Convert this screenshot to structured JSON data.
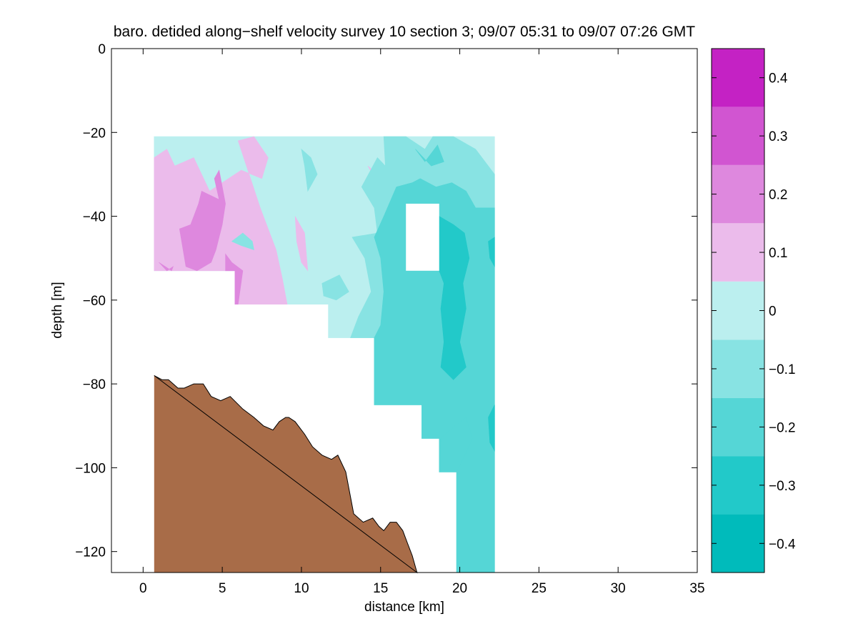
{
  "chart_data": {
    "type": "contour",
    "title": "baro. detided along−shelf velocity survey 10 section 3; 09/07 05:31 to 09/07 07:26 GMT",
    "xlabel": "distance [km]",
    "ylabel": "depth [m]",
    "xlim": [
      -2,
      35
    ],
    "ylim": [
      -125,
      0
    ],
    "x_ticks": [
      0,
      5,
      10,
      15,
      20,
      25,
      30,
      35
    ],
    "x_tick_labels": [
      "0",
      "5",
      "10",
      "15",
      "20",
      "25",
      "30",
      "35"
    ],
    "y_ticks": [
      0,
      -20,
      -40,
      -60,
      -80,
      -100,
      -120
    ],
    "y_tick_labels": [
      "0",
      "−20",
      "−40",
      "−60",
      "−80",
      "−100",
      "−120"
    ],
    "colorbar": {
      "range": [
        -0.45,
        0.45
      ],
      "levels": [
        -0.45,
        -0.35,
        -0.25,
        -0.15,
        -0.05,
        0.05,
        0.15,
        0.25,
        0.35,
        0.45
      ],
      "colors": [
        "#00bbbb",
        "#22c9c9",
        "#55d6d6",
        "#88e3e3",
        "#bbefef",
        "#ebbbeb",
        "#de88de",
        "#d155d1",
        "#c422c4",
        "#bb00bb"
      ],
      "ticks": [
        0.4,
        0.3,
        0.2,
        0.1,
        0,
        -0.1,
        -0.2,
        -0.3,
        -0.4
      ],
      "tick_labels": [
        "0.4",
        "0.3",
        "0.2",
        "0.1",
        "0",
        "−0.1",
        "−0.2",
        "−0.3",
        "−0.4"
      ]
    },
    "bathymetry": {
      "color": "#a86c48",
      "x": [
        0.7,
        1.2,
        1.6,
        2.2,
        2.6,
        3.2,
        3.8,
        4.3,
        4.9,
        5.5,
        6.3,
        7.0,
        7.6,
        8.2,
        8.6,
        9.0,
        9.2,
        9.6,
        10.2,
        10.7,
        11.3,
        11.9,
        12.3,
        12.8,
        13.3,
        13.9,
        14.5,
        14.9,
        15.2,
        15.6,
        16.0,
        16.4,
        16.7,
        17.0,
        17.3
      ],
      "depth": [
        -78,
        -79,
        -79,
        -81,
        -81,
        -80,
        -80,
        -83,
        -84,
        -83,
        -86,
        -88,
        -90,
        -91,
        -89,
        -88,
        -88,
        -89,
        -92,
        -95,
        -97,
        -98,
        -97,
        -101,
        -111,
        -113,
        -112,
        -114,
        -115,
        -113,
        -113,
        -115,
        -118,
        -121,
        -125
      ]
    },
    "data_cells": [
      {
        "x": [
          0.7,
          22.2
        ],
        "depth": [
          -21,
          -53
        ]
      },
      {
        "x": [
          5.8,
          22.2
        ],
        "depth": [
          -53,
          -61
        ]
      },
      {
        "x": [
          11.7,
          22.2
        ],
        "depth": [
          -61,
          -69
        ]
      },
      {
        "x": [
          14.6,
          22.2
        ],
        "depth": [
          -69,
          -85
        ]
      },
      {
        "x": [
          17.6,
          22.2
        ],
        "depth": [
          -85,
          -93
        ]
      },
      {
        "x": [
          18.7,
          22.2
        ],
        "depth": [
          -93,
          -101
        ]
      },
      {
        "x": [
          19.8,
          22.2
        ],
        "depth": [
          -101,
          -125
        ]
      }
    ],
    "mask_hole": {
      "x": [
        16.6,
        18.7
      ],
      "depth": [
        -37,
        -53
      ]
    },
    "contour_regions": [
      {
        "level": 0.0,
        "points": [
          [
            0.7,
            -21
          ],
          [
            22.2,
            -21
          ],
          [
            22.2,
            -125
          ],
          [
            19.8,
            -125
          ],
          [
            19.8,
            -101
          ],
          [
            18.7,
            -101
          ],
          [
            18.7,
            -93
          ],
          [
            17.6,
            -93
          ],
          [
            17.6,
            -85
          ],
          [
            14.6,
            -85
          ],
          [
            14.6,
            -69
          ],
          [
            11.7,
            -69
          ],
          [
            11.7,
            -61
          ],
          [
            5.8,
            -61
          ],
          [
            5.8,
            -53
          ],
          [
            0.7,
            -53
          ]
        ]
      },
      {
        "level": 0.1,
        "points": [
          [
            0.7,
            -26
          ],
          [
            1.5,
            -24
          ],
          [
            2.0,
            -28
          ],
          [
            3.2,
            -26
          ],
          [
            4.2,
            -34
          ],
          [
            5.0,
            -32
          ],
          [
            6.2,
            -29
          ],
          [
            7.5,
            -31
          ],
          [
            7.9,
            -26
          ],
          [
            7.0,
            -21
          ],
          [
            6.0,
            -22
          ],
          [
            7.4,
            -38
          ],
          [
            8.4,
            -48
          ],
          [
            8.8,
            -55
          ],
          [
            9.1,
            -61
          ],
          [
            5.8,
            -61
          ],
          [
            5.8,
            -53
          ],
          [
            0.7,
            -53
          ]
        ]
      },
      {
        "level": 0.1,
        "points": [
          [
            9.6,
            -40
          ],
          [
            10.2,
            -44
          ],
          [
            10.4,
            -53
          ],
          [
            10.0,
            -51
          ],
          [
            9.7,
            -46
          ]
        ]
      },
      {
        "level": 0.1,
        "points": [
          [
            14.2,
            -28
          ],
          [
            14.8,
            -30
          ],
          [
            15.4,
            -31
          ],
          [
            14.8,
            -32
          ]
        ]
      },
      {
        "level": 0.2,
        "points": [
          [
            2.3,
            -43
          ],
          [
            3.0,
            -42
          ],
          [
            3.5,
            -37
          ],
          [
            3.7,
            -34
          ],
          [
            4.8,
            -36
          ],
          [
            4.5,
            -31
          ],
          [
            4.8,
            -29
          ],
          [
            5.2,
            -37
          ],
          [
            5.0,
            -42
          ],
          [
            4.6,
            -48
          ],
          [
            4.3,
            -51
          ],
          [
            3.4,
            -53
          ],
          [
            2.7,
            -52
          ]
        ]
      },
      {
        "level": 0.2,
        "points": [
          [
            1.0,
            -51
          ],
          [
            1.5,
            -53
          ],
          [
            1.9,
            -52
          ],
          [
            1.8,
            -53
          ]
        ]
      },
      {
        "level": 0.2,
        "points": [
          [
            5.2,
            -49
          ],
          [
            5.6,
            -51
          ],
          [
            6.3,
            -53
          ],
          [
            6.0,
            -61
          ],
          [
            5.8,
            -61
          ],
          [
            5.8,
            -53
          ],
          [
            5.2,
            -53
          ]
        ]
      },
      {
        "level": -0.1,
        "points": [
          [
            15.2,
            -21
          ],
          [
            16.6,
            -21
          ],
          [
            17.8,
            -24
          ],
          [
            18.3,
            -21
          ],
          [
            19.6,
            -21
          ],
          [
            21.0,
            -24
          ],
          [
            22.2,
            -30
          ],
          [
            22.2,
            -125
          ],
          [
            19.8,
            -125
          ],
          [
            19.8,
            -101
          ],
          [
            18.7,
            -101
          ],
          [
            18.7,
            -93
          ],
          [
            17.6,
            -93
          ],
          [
            17.6,
            -85
          ],
          [
            14.6,
            -85
          ],
          [
            14.6,
            -69
          ],
          [
            13.1,
            -69
          ],
          [
            13.6,
            -64
          ],
          [
            14.4,
            -58
          ],
          [
            14.0,
            -50
          ],
          [
            13.2,
            -45
          ],
          [
            14.8,
            -44
          ],
          [
            14.6,
            -38
          ],
          [
            13.8,
            -33
          ],
          [
            14.8,
            -26
          ],
          [
            15.3,
            -28
          ]
        ]
      },
      {
        "level": -0.1,
        "points": [
          [
            10.0,
            -24
          ],
          [
            10.6,
            -26
          ],
          [
            11.0,
            -30
          ],
          [
            10.4,
            -34
          ],
          [
            10.2,
            -28
          ]
        ]
      },
      {
        "level": -0.1,
        "points": [
          [
            11.3,
            -56
          ],
          [
            12.4,
            -54
          ],
          [
            13.0,
            -58
          ],
          [
            12.2,
            -60
          ],
          [
            11.4,
            -59
          ]
        ]
      },
      {
        "level": -0.1,
        "points": [
          [
            5.6,
            -46
          ],
          [
            6.3,
            -44
          ],
          [
            6.9,
            -46
          ],
          [
            7.0,
            -48
          ],
          [
            6.2,
            -47
          ]
        ]
      },
      {
        "level": -0.2,
        "points": [
          [
            16.0,
            -33
          ],
          [
            17.0,
            -32
          ],
          [
            17.5,
            -31
          ],
          [
            18.5,
            -33
          ],
          [
            19.5,
            -32
          ],
          [
            20.4,
            -34
          ],
          [
            21.0,
            -38
          ],
          [
            22.2,
            -38
          ],
          [
            22.2,
            -125
          ],
          [
            19.8,
            -125
          ],
          [
            19.8,
            -101
          ],
          [
            18.7,
            -101
          ],
          [
            18.7,
            -93
          ],
          [
            17.6,
            -93
          ],
          [
            17.6,
            -85
          ],
          [
            14.6,
            -85
          ],
          [
            14.6,
            -69
          ],
          [
            15.0,
            -66
          ],
          [
            15.2,
            -58
          ],
          [
            15.0,
            -50
          ],
          [
            14.6,
            -45
          ],
          [
            15.2,
            -40
          ]
        ]
      },
      {
        "level": -0.2,
        "points": [
          [
            17.2,
            -24
          ],
          [
            17.8,
            -27
          ],
          [
            18.6,
            -23
          ],
          [
            19.0,
            -27
          ],
          [
            18.2,
            -28
          ]
        ]
      },
      {
        "level": -0.3,
        "points": [
          [
            18.7,
            -40
          ],
          [
            19.6,
            -42
          ],
          [
            20.3,
            -44
          ],
          [
            20.6,
            -50
          ],
          [
            20.2,
            -56
          ],
          [
            20.4,
            -62
          ],
          [
            20.0,
            -70
          ],
          [
            20.4,
            -76
          ],
          [
            19.6,
            -79
          ],
          [
            18.8,
            -76
          ],
          [
            19.0,
            -70
          ],
          [
            18.8,
            -62
          ],
          [
            19.0,
            -56
          ],
          [
            18.7,
            -53
          ]
        ]
      },
      {
        "level": -0.2,
        "points": [
          [
            18.8,
            -93
          ],
          [
            19.7,
            -90
          ],
          [
            20.4,
            -88
          ],
          [
            20.8,
            -93
          ],
          [
            20.2,
            -98
          ],
          [
            19.8,
            -101
          ],
          [
            18.7,
            -101
          ]
        ]
      },
      {
        "level": -0.3,
        "points": [
          [
            21.8,
            -46
          ],
          [
            22.2,
            -45
          ],
          [
            22.2,
            -52
          ],
          [
            21.9,
            -50
          ]
        ]
      },
      {
        "level": -0.3,
        "points": [
          [
            21.8,
            -88
          ],
          [
            22.2,
            -85
          ],
          [
            22.2,
            -96
          ],
          [
            21.9,
            -94
          ]
        ]
      }
    ]
  }
}
